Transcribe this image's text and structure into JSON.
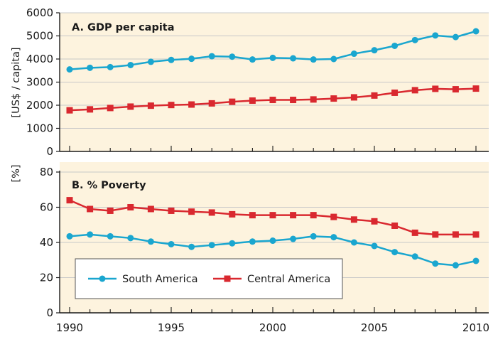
{
  "chart_data": [
    {
      "type": "line",
      "title": "A. GDP per capita",
      "ylabel": "[US$ / capita]",
      "ylim": [
        0,
        6000
      ],
      "yticks": [
        0,
        1000,
        2000,
        3000,
        4000,
        5000,
        6000
      ],
      "x": [
        1990,
        1991,
        1992,
        1993,
        1994,
        1995,
        1996,
        1997,
        1998,
        1999,
        2000,
        2001,
        2002,
        2003,
        2004,
        2005,
        2006,
        2007,
        2008,
        2009,
        2010
      ],
      "series": [
        {
          "name": "South America",
          "color": "#1aa6cf",
          "marker": "circle",
          "values": [
            3550,
            3620,
            3650,
            3740,
            3880,
            3960,
            4010,
            4120,
            4100,
            3980,
            4050,
            4030,
            3980,
            4000,
            4230,
            4380,
            4570,
            4820,
            5020,
            4950,
            5200
          ]
        },
        {
          "name": "Central America",
          "color": "#d9282f",
          "marker": "square",
          "values": [
            1780,
            1820,
            1880,
            1940,
            1980,
            2010,
            2030,
            2080,
            2150,
            2200,
            2230,
            2230,
            2250,
            2290,
            2340,
            2420,
            2540,
            2650,
            2710,
            2690,
            2720
          ]
        }
      ]
    },
    {
      "type": "line",
      "title": "B. % Poverty",
      "ylabel": "[%]",
      "ylim": [
        0,
        80
      ],
      "yticks": [
        0,
        20,
        40,
        60,
        80
      ],
      "x": [
        1990,
        1991,
        1992,
        1993,
        1994,
        1995,
        1996,
        1997,
        1998,
        1999,
        2000,
        2001,
        2002,
        2003,
        2004,
        2005,
        2006,
        2007,
        2008,
        2009,
        2010
      ],
      "xticks": [
        1990,
        1995,
        2000,
        2005,
        2010
      ],
      "series": [
        {
          "name": "South America",
          "color": "#1aa6cf",
          "marker": "circle",
          "values": [
            43.5,
            44.5,
            43.5,
            42.5,
            40.5,
            39,
            37.5,
            38.5,
            39.5,
            40.5,
            41,
            42,
            43.5,
            43,
            40,
            38,
            34.5,
            32,
            28,
            27,
            29.5
          ]
        },
        {
          "name": "Central America",
          "color": "#d9282f",
          "marker": "square",
          "values": [
            64,
            59,
            58,
            60,
            59,
            58,
            57.5,
            57,
            56,
            55.5,
            55.5,
            55.5,
            55.5,
            54.5,
            53,
            52,
            49.5,
            45.5,
            44.5,
            44.5,
            44.5
          ]
        }
      ]
    }
  ],
  "legend": {
    "placement": "bottom-left of panel B",
    "items": [
      {
        "label": "South America",
        "color": "#1aa6cf",
        "marker": "circle"
      },
      {
        "label": "Central America",
        "color": "#d9282f",
        "marker": "square"
      }
    ]
  },
  "colors": {
    "panel_background": "#fdf3de",
    "grid": "#c8c8c8",
    "axis": "#1a1a1a"
  }
}
